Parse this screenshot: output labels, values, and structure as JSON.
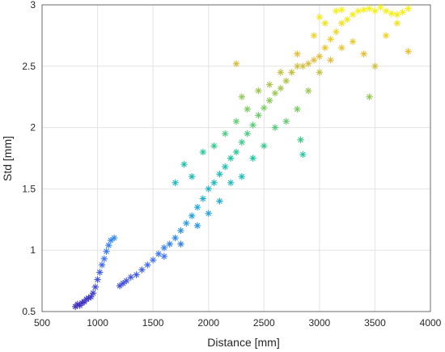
{
  "chart_data": {
    "type": "scatter",
    "title": "",
    "xlabel": "Distance [mm]",
    "ylabel": "Std [mm]",
    "xlim": [
      500,
      4000
    ],
    "ylim": [
      0.5,
      3
    ],
    "xticks": [
      500,
      1000,
      1500,
      2000,
      2500,
      3000,
      3500,
      4000
    ],
    "yticks": [
      0.5,
      1,
      1.5,
      2,
      2.5,
      3
    ],
    "xtick_labels": [
      "500",
      "1000",
      "1500",
      "2000",
      "2500",
      "3000",
      "3500",
      "4000"
    ],
    "ytick_labels": [
      "0.5",
      "1",
      "1.5",
      "2",
      "2.5",
      "3"
    ],
    "grid": true,
    "legend": "none",
    "marker": "asterisk",
    "colormap": "parula (color mapped to Std)",
    "colormap_stops": [
      "#3f26b5",
      "#4070f5",
      "#20a8dc",
      "#1fc6a3",
      "#7ccc5c",
      "#e6b936",
      "#f9f80e"
    ],
    "series": [
      {
        "points": [
          [
            800,
            0.54
          ],
          [
            820,
            0.56
          ],
          [
            840,
            0.55
          ],
          [
            860,
            0.57
          ],
          [
            880,
            0.58
          ],
          [
            900,
            0.6
          ],
          [
            920,
            0.61
          ],
          [
            940,
            0.62
          ],
          [
            960,
            0.65
          ],
          [
            980,
            0.7
          ],
          [
            1000,
            0.76
          ],
          [
            1020,
            0.82
          ],
          [
            1040,
            0.88
          ],
          [
            1060,
            0.93
          ],
          [
            1080,
            0.99
          ],
          [
            1100,
            1.04
          ],
          [
            1120,
            1.08
          ],
          [
            1150,
            1.1
          ],
          [
            1200,
            0.71
          ],
          [
            1230,
            0.73
          ],
          [
            1260,
            0.75
          ],
          [
            1300,
            0.78
          ],
          [
            1350,
            0.8
          ],
          [
            1400,
            0.84
          ],
          [
            1450,
            0.88
          ],
          [
            1500,
            0.92
          ],
          [
            1550,
            0.97
          ],
          [
            1600,
            1.02
          ],
          [
            1650,
            1.05
          ],
          [
            1700,
            1.1
          ],
          [
            1750,
            1.16
          ],
          [
            1800,
            1.22
          ],
          [
            1850,
            1.28
          ],
          [
            1900,
            1.35
          ],
          [
            1950,
            1.42
          ],
          [
            2000,
            1.5
          ],
          [
            2050,
            1.55
          ],
          [
            2100,
            1.62
          ],
          [
            2150,
            1.68
          ],
          [
            2200,
            1.75
          ],
          [
            2250,
            1.8
          ],
          [
            2300,
            1.88
          ],
          [
            2350,
            1.95
          ],
          [
            2400,
            2.02
          ],
          [
            2450,
            2.1
          ],
          [
            2500,
            2.16
          ],
          [
            2550,
            2.22
          ],
          [
            2600,
            2.28
          ],
          [
            2650,
            2.32
          ],
          [
            2700,
            2.38
          ],
          [
            2750,
            2.45
          ],
          [
            2800,
            2.5
          ],
          [
            2850,
            2.5
          ],
          [
            2900,
            2.52
          ],
          [
            2950,
            2.55
          ],
          [
            3000,
            2.58
          ],
          [
            3050,
            2.65
          ],
          [
            3100,
            2.72
          ],
          [
            3150,
            2.78
          ],
          [
            3200,
            2.85
          ],
          [
            3250,
            2.88
          ],
          [
            3300,
            2.92
          ],
          [
            3350,
            2.95
          ],
          [
            3400,
            2.96
          ],
          [
            3450,
            2.97
          ],
          [
            3500,
            2.95
          ],
          [
            3550,
            2.98
          ],
          [
            3600,
            2.95
          ],
          [
            3650,
            2.93
          ],
          [
            3700,
            2.92
          ],
          [
            3750,
            2.94
          ],
          [
            3800,
            2.97
          ],
          [
            1700,
            1.55
          ],
          [
            1780,
            1.7
          ],
          [
            1850,
            1.6
          ],
          [
            1950,
            1.8
          ],
          [
            2050,
            1.85
          ],
          [
            2150,
            1.95
          ],
          [
            2250,
            2.05
          ],
          [
            2350,
            2.15
          ],
          [
            2450,
            2.3
          ],
          [
            2550,
            2.35
          ],
          [
            2650,
            2.45
          ],
          [
            2800,
            2.6
          ],
          [
            2950,
            2.75
          ],
          [
            3050,
            2.85
          ],
          [
            3150,
            2.95
          ],
          [
            1600,
            0.95
          ],
          [
            1750,
            1.05
          ],
          [
            1900,
            1.2
          ],
          [
            2000,
            1.3
          ],
          [
            2100,
            1.4
          ],
          [
            2200,
            1.55
          ],
          [
            2300,
            1.6
          ],
          [
            2400,
            1.75
          ],
          [
            2500,
            1.85
          ],
          [
            2600,
            2.0
          ],
          [
            2700,
            2.05
          ],
          [
            2800,
            2.15
          ],
          [
            2900,
            2.3
          ],
          [
            3000,
            2.45
          ],
          [
            3100,
            2.55
          ],
          [
            3200,
            2.65
          ],
          [
            3300,
            2.7
          ],
          [
            3400,
            2.6
          ],
          [
            3450,
            2.25
          ],
          [
            3500,
            2.5
          ],
          [
            3600,
            2.75
          ],
          [
            3700,
            2.85
          ],
          [
            3800,
            2.62
          ],
          [
            2250,
            2.52
          ],
          [
            2300,
            2.25
          ],
          [
            2850,
            1.78
          ],
          [
            2830,
            1.9
          ],
          [
            3200,
            2.96
          ],
          [
            3000,
            2.9
          ]
        ]
      }
    ]
  }
}
